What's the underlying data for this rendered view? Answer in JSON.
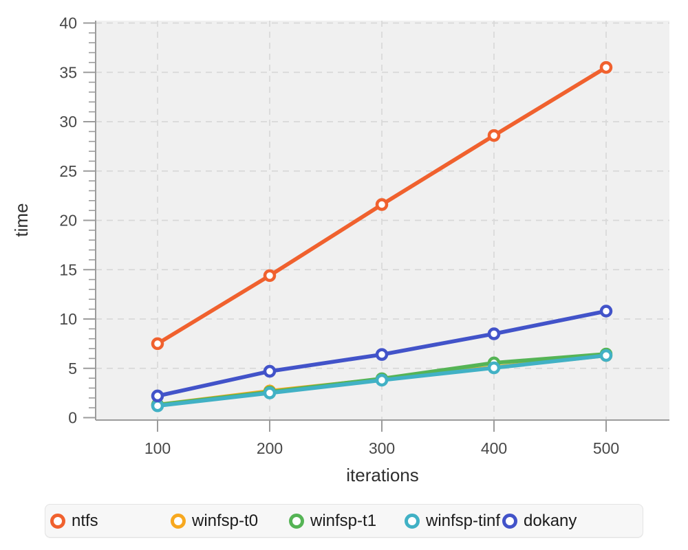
{
  "chart_data": {
    "type": "line",
    "title": "",
    "xlabel": "iterations",
    "ylabel": "time",
    "x": [
      100,
      200,
      300,
      400,
      500
    ],
    "xticks": [
      100,
      200,
      300,
      400,
      500
    ],
    "yticks": [
      0,
      5,
      10,
      15,
      20,
      25,
      30,
      35,
      40
    ],
    "xlim": [
      45,
      556
    ],
    "ylim": [
      0,
      40
    ],
    "grid": "dashed",
    "legend_position": "bottom",
    "series": [
      {
        "name": "ntfs",
        "color": "#F0612E",
        "values": [
          7.5,
          14.4,
          21.6,
          28.6,
          35.5
        ]
      },
      {
        "name": "winfsp-t0",
        "color": "#F7A81F",
        "values": [
          1.3,
          2.7,
          3.9,
          5.1,
          6.3
        ]
      },
      {
        "name": "winfsp-t1",
        "color": "#55B455",
        "values": [
          1.3,
          2.6,
          3.95,
          5.55,
          6.45
        ]
      },
      {
        "name": "winfsp-tinf",
        "color": "#41B1C5",
        "values": [
          1.2,
          2.5,
          3.8,
          5.05,
          6.3
        ]
      },
      {
        "name": "dokany",
        "color": "#4253C9",
        "values": [
          2.2,
          4.7,
          6.4,
          8.5,
          10.8
        ]
      }
    ],
    "colors": {
      "plot_bg": "#f0f0f0",
      "grid": "#d8d8d8",
      "axis": "#9b9b9b",
      "tick_label": "#484848",
      "axis_label": "#2e2e2e",
      "marker_fill": "#ffffff",
      "legend_bg": "#f7f7f7",
      "legend_border": "#e3e3e3"
    }
  }
}
